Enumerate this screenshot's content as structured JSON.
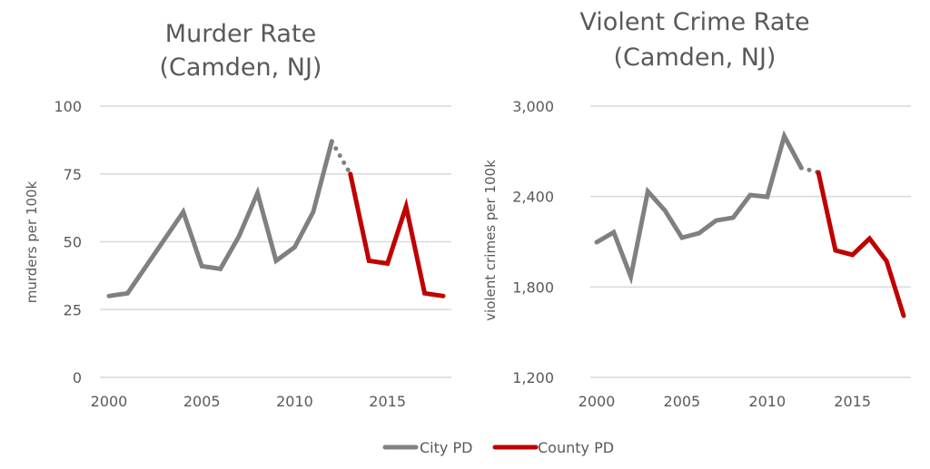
{
  "legend": {
    "city": "City PD",
    "county": "County PD"
  },
  "colors": {
    "city": "#808080",
    "county": "#C00000",
    "grid": "#d9d9d9"
  },
  "chart_data": [
    {
      "type": "line",
      "title_line1": "Murder Rate",
      "title_line2": "(Camden, NJ)",
      "xlabel": "",
      "ylabel": "murders per 100k",
      "ylim": [
        0,
        100
      ],
      "yticks": [
        0,
        25,
        50,
        75,
        100
      ],
      "ytick_labels": [
        "0",
        "25",
        "50",
        "75",
        "100"
      ],
      "xlim": [
        2000,
        2018
      ],
      "xticks": [
        2000,
        2005,
        2010,
        2015
      ],
      "xtick_labels": [
        "2000",
        "2005",
        "2010",
        "2015"
      ],
      "grid": true,
      "legend": "bottom",
      "series": [
        {
          "name": "City PD",
          "x": [
            2000,
            2001,
            2002,
            2003,
            2004,
            2005,
            2006,
            2007,
            2008,
            2009,
            2010,
            2011,
            2012
          ],
          "y": [
            30,
            31,
            41,
            51,
            61,
            41,
            40,
            52,
            68,
            43,
            48,
            61,
            87
          ]
        },
        {
          "name": "County PD",
          "x": [
            2013,
            2014,
            2015,
            2016,
            2017,
            2018
          ],
          "y": [
            75,
            43,
            42,
            63,
            31,
            30
          ]
        }
      ],
      "transition": {
        "x": [
          2012,
          2013
        ],
        "y": [
          87,
          75
        ],
        "style": "dotted"
      }
    },
    {
      "type": "line",
      "title_line1": "Violent Crime Rate",
      "title_line2": "(Camden, NJ)",
      "xlabel": "",
      "ylabel": "violent crimes per 100k",
      "ylim": [
        1200,
        3000
      ],
      "yticks": [
        1200,
        1800,
        2400,
        3000
      ],
      "ytick_labels": [
        "1,200",
        "1,800",
        "2,400",
        "3,000"
      ],
      "xlim": [
        2000,
        2018
      ],
      "xticks": [
        2000,
        2005,
        2010,
        2015
      ],
      "xtick_labels": [
        "2000",
        "2005",
        "2010",
        "2015"
      ],
      "grid": true,
      "legend": "bottom",
      "series": [
        {
          "name": "City PD",
          "x": [
            2000,
            2001,
            2002,
            2003,
            2004,
            2005,
            2006,
            2007,
            2008,
            2009,
            2010,
            2011,
            2012
          ],
          "y": [
            2097,
            2163,
            1868,
            2434,
            2308,
            2127,
            2157,
            2241,
            2260,
            2410,
            2398,
            2801,
            2590
          ]
        },
        {
          "name": "County PD",
          "x": [
            2013,
            2014,
            2015,
            2016,
            2017,
            2018
          ],
          "y": [
            2560,
            2043,
            2013,
            2121,
            1971,
            1609
          ]
        }
      ],
      "transition": {
        "x": [
          2012,
          2013
        ],
        "y": [
          2590,
          2560
        ],
        "style": "dotted"
      }
    }
  ]
}
